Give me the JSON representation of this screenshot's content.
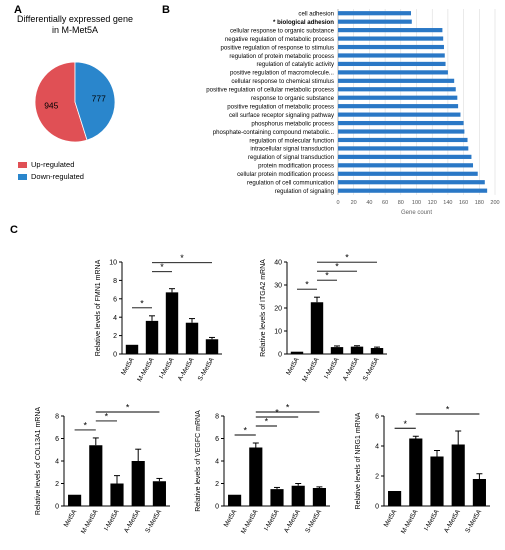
{
  "panels": {
    "a": "A",
    "b": "B",
    "c": "C"
  },
  "colors": {
    "up": "#e05055",
    "down": "#2a86cc",
    "bar_b": "#2a78c6",
    "bar_c": "#000000"
  },
  "chart_data": [
    {
      "id": "pie",
      "type": "pie",
      "title_lines": [
        "Differentially expressed gene",
        "in M-Met5A"
      ],
      "slices": [
        {
          "label": "Up-regulated",
          "value": 945,
          "color": "#e05055"
        },
        {
          "label": "Down-regulated",
          "value": 777,
          "color": "#2a86cc"
        }
      ],
      "legend_placement": "bottom"
    },
    {
      "id": "go",
      "type": "bar",
      "orientation": "horizontal",
      "categories": [
        "cell adhesion",
        "* biological adhesion",
        "cellular response to organic substance",
        "negative regulation of metabolic process",
        "positive regulation of response to stimulus",
        "regulation of protein metabolic process",
        "regulation of catalytic activity",
        "positive regulation of macromolecule...",
        "cellular response to chemical stimulus",
        "positive regulation of cellular metabolic process",
        "response to organic substance",
        "positive regulation of metabolic process",
        "cell surface receptor signaling pathway",
        "phosphorus metabolic process",
        "phosphate-containing compound metabolic...",
        "regulation of molecular function",
        "intracellular signal transduction",
        "regulation of signal transduction",
        "protein modification process",
        "cellular protein modification process",
        "regulation of cell communication",
        "regulation of signaling"
      ],
      "values": [
        93,
        94,
        133,
        134,
        135,
        136,
        137,
        140,
        148,
        150,
        152,
        153,
        156,
        160,
        161,
        165,
        166,
        170,
        172,
        178,
        187,
        190
      ],
      "xlabel": "Gene count",
      "xlim": [
        0,
        200
      ],
      "xticks": [
        "0",
        "20",
        "40",
        "60",
        "80",
        "100",
        "120",
        "140",
        "160",
        "180",
        "200"
      ],
      "grid": true
    },
    {
      "id": "fmn1",
      "type": "bar",
      "ylabel": "Relative levels of FMN1 mRNA",
      "categories": [
        "Met5A",
        "M-Met5A",
        "I-Met5A",
        "A-Met5A",
        "S-Met5A"
      ],
      "values": [
        1,
        3.6,
        6.7,
        3.4,
        1.6
      ],
      "errors": [
        0,
        0.55,
        0.4,
        0.45,
        0.2
      ],
      "ylim": [
        0,
        10
      ],
      "yticks": [
        "0",
        "2",
        "4",
        "6",
        "8",
        "10"
      ],
      "sig": [
        {
          "from": 0,
          "to": 1,
          "label": "*"
        },
        {
          "from": 1,
          "to": 2,
          "label": "*"
        },
        {
          "from": 1,
          "to": 4,
          "label": "*"
        }
      ]
    },
    {
      "id": "itga2",
      "type": "bar",
      "ylabel": "Relative levels of ITGA2 mRNA",
      "categories": [
        "Met5A",
        "M-Met5A",
        "I-Met5A",
        "A-Met5A",
        "S-Met5A"
      ],
      "values": [
        1,
        22.5,
        3,
        3.2,
        2.6
      ],
      "errors": [
        0,
        2.2,
        0.5,
        0.4,
        0.4
      ],
      "ylim": [
        0,
        40
      ],
      "yticks": [
        "0",
        "10",
        "20",
        "30",
        "40"
      ],
      "sig": [
        {
          "from": 0,
          "to": 1,
          "label": "*"
        },
        {
          "from": 1,
          "to": 2,
          "label": "*"
        },
        {
          "from": 1,
          "to": 3,
          "label": "*"
        },
        {
          "from": 1,
          "to": 4,
          "label": "*"
        }
      ]
    },
    {
      "id": "col13a1",
      "type": "bar",
      "ylabel": "Relative levels of COL13A1 mRNA",
      "categories": [
        "Met5A",
        "M-Met5A",
        "I-Met5A",
        "A-Met5A",
        "S-Met5A"
      ],
      "values": [
        1,
        5.4,
        2,
        4,
        2.2
      ],
      "errors": [
        0,
        0.65,
        0.7,
        1.05,
        0.25
      ],
      "ylim": [
        0,
        8
      ],
      "yticks": [
        "0",
        "2",
        "4",
        "6",
        "8"
      ],
      "sig": [
        {
          "from": 0,
          "to": 1,
          "label": "*"
        },
        {
          "from": 1,
          "to": 2,
          "label": "*"
        },
        {
          "from": 1,
          "to": 4,
          "label": "*"
        }
      ]
    },
    {
      "id": "vegfc",
      "type": "bar",
      "ylabel": "Relative levels of VEGFC mRNA",
      "categories": [
        "Met5A",
        "M-Met5A",
        "I-Met5A",
        "A-Met5A",
        "S-Met5A"
      ],
      "values": [
        1,
        5.2,
        1.5,
        1.8,
        1.6
      ],
      "errors": [
        0,
        0.4,
        0.15,
        0.2,
        0.1
      ],
      "ylim": [
        0,
        8
      ],
      "yticks": [
        "0",
        "2",
        "4",
        "6",
        "8"
      ],
      "sig": [
        {
          "from": 0,
          "to": 1,
          "label": "*"
        },
        {
          "from": 1,
          "to": 2,
          "label": "*"
        },
        {
          "from": 1,
          "to": 3,
          "label": "*"
        },
        {
          "from": 1,
          "to": 4,
          "label": "*"
        }
      ]
    },
    {
      "id": "nrg1",
      "type": "bar",
      "ylabel": "Relative levels of NRG1 mRNA",
      "categories": [
        "Met5A",
        "M-Met5A",
        "I-Met5A",
        "A-Met5A",
        "S-Met5A"
      ],
      "values": [
        1,
        4.5,
        3.3,
        4.1,
        1.8
      ],
      "errors": [
        0,
        0.15,
        0.4,
        0.9,
        0.35
      ],
      "ylim": [
        0,
        6
      ],
      "yticks": [
        "0",
        "2",
        "4",
        "6"
      ],
      "sig": [
        {
          "from": 0,
          "to": 1,
          "label": "*"
        },
        {
          "from": 1,
          "to": 4,
          "label": "*"
        }
      ]
    }
  ]
}
